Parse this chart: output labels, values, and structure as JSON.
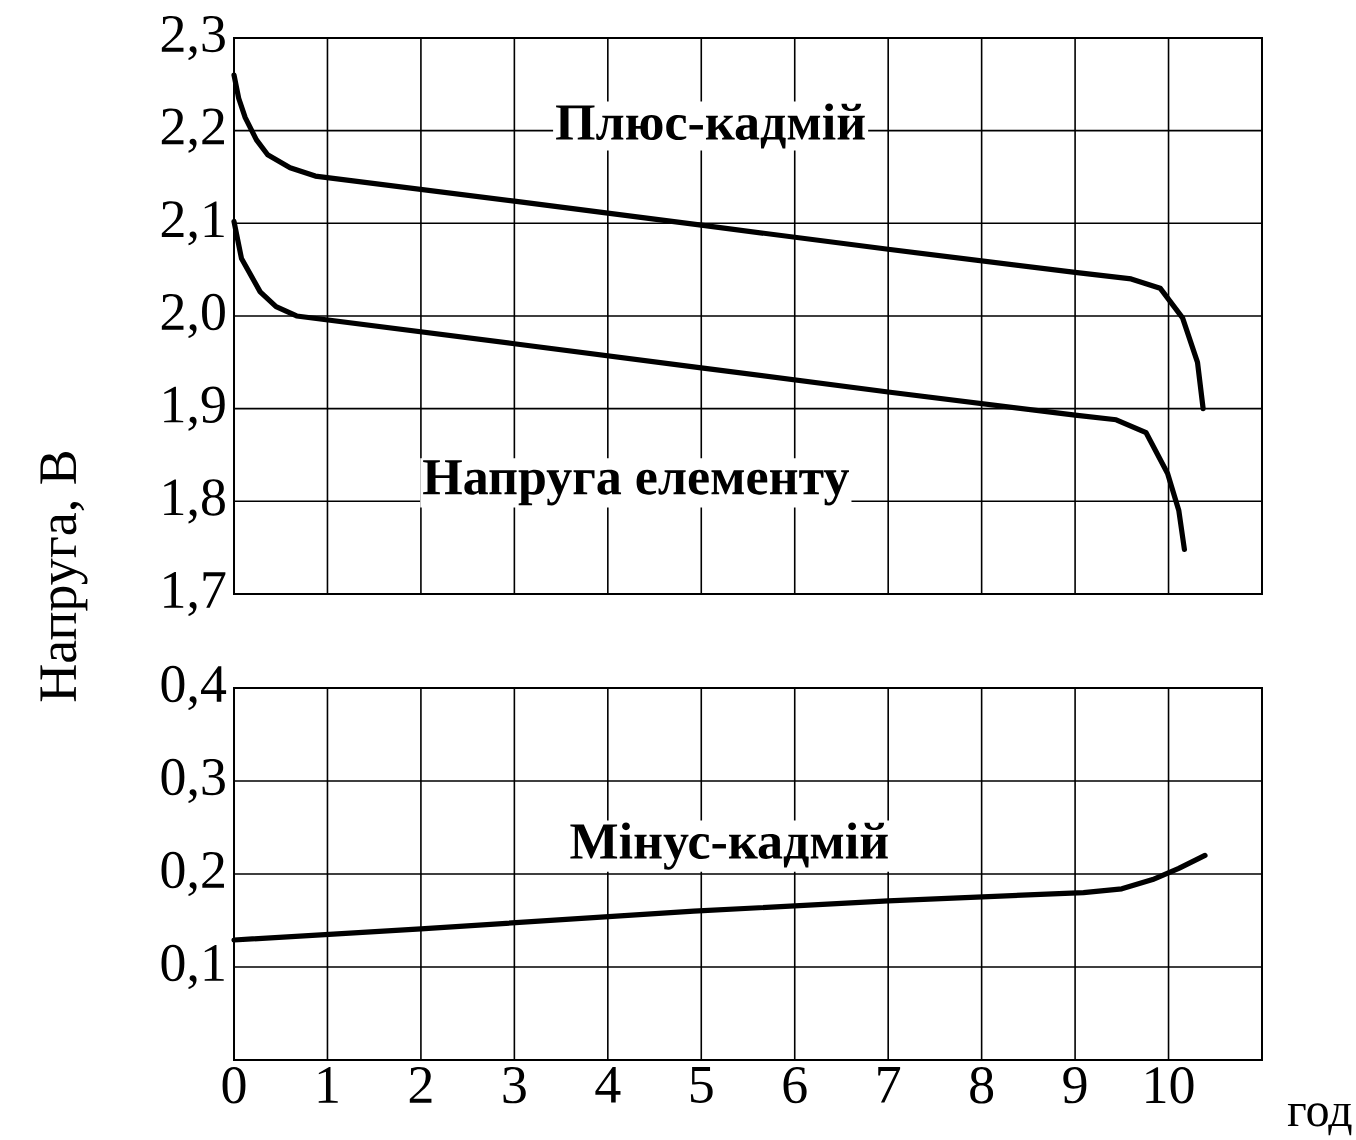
{
  "chart_data": [
    {
      "type": "line",
      "ylabel": "Напруга, В",
      "xlim": [
        0,
        11
      ],
      "xticks": [
        0,
        1,
        2,
        3,
        4,
        5,
        6,
        7,
        8,
        9,
        10
      ],
      "ylim": [
        1.7,
        2.3
      ],
      "yticks": [
        {
          "value": 1.7,
          "label": "1,7"
        },
        {
          "value": 1.8,
          "label": "1,8"
        },
        {
          "value": 1.9,
          "label": "1,9"
        },
        {
          "value": 2.0,
          "label": "2,0"
        },
        {
          "value": 2.1,
          "label": "2,1"
        },
        {
          "value": 2.2,
          "label": "2,2"
        },
        {
          "value": 2.3,
          "label": "2,3"
        }
      ],
      "grid": true,
      "tick_labels": "y",
      "series": [
        {
          "name": "Плюс-кадмій",
          "color": "#000000",
          "x": [
            0,
            0.05,
            0.12,
            0.24,
            0.36,
            0.6,
            0.87,
            3,
            5,
            7,
            9,
            9.6,
            9.91,
            10.15,
            10.31,
            10.37
          ],
          "values": [
            2.26,
            2.235,
            2.214,
            2.19,
            2.174,
            2.16,
            2.151,
            2.124,
            2.098,
            2.072,
            2.047,
            2.04,
            2.03,
            1.998,
            1.95,
            1.9
          ]
        },
        {
          "name": "Напруга елементу",
          "color": "#000000",
          "x": [
            0,
            0.08,
            0.28,
            0.45,
            0.67,
            3,
            5,
            7,
            9,
            9.44,
            9.76,
            9.99,
            10.11,
            10.17
          ],
          "values": [
            2.102,
            2.062,
            2.026,
            2.01,
            2.0,
            1.97,
            1.944,
            1.918,
            1.893,
            1.888,
            1.874,
            1.83,
            1.79,
            1.748
          ]
        }
      ]
    },
    {
      "type": "line",
      "xlabel": "год",
      "xlim": [
        0,
        11
      ],
      "xticks": [
        0,
        1,
        2,
        3,
        4,
        5,
        6,
        7,
        8,
        9,
        10
      ],
      "ylim": [
        0,
        0.4
      ],
      "yticks": [
        {
          "value": 0.1,
          "label": "0,1"
        },
        {
          "value": 0.2,
          "label": "0,2"
        },
        {
          "value": 0.3,
          "label": "0,3"
        },
        {
          "value": 0.4,
          "label": "0,4"
        }
      ],
      "grid": true,
      "series": [
        {
          "name": "Мінус-кадмій",
          "color": "#000000",
          "x": [
            0,
            2,
            4.92,
            7,
            9.09,
            9.5,
            9.83,
            10.11,
            10.39
          ],
          "values": [
            0.129,
            0.141,
            0.16,
            0.171,
            0.18,
            0.184,
            0.194,
            0.206,
            0.22
          ]
        }
      ]
    }
  ]
}
